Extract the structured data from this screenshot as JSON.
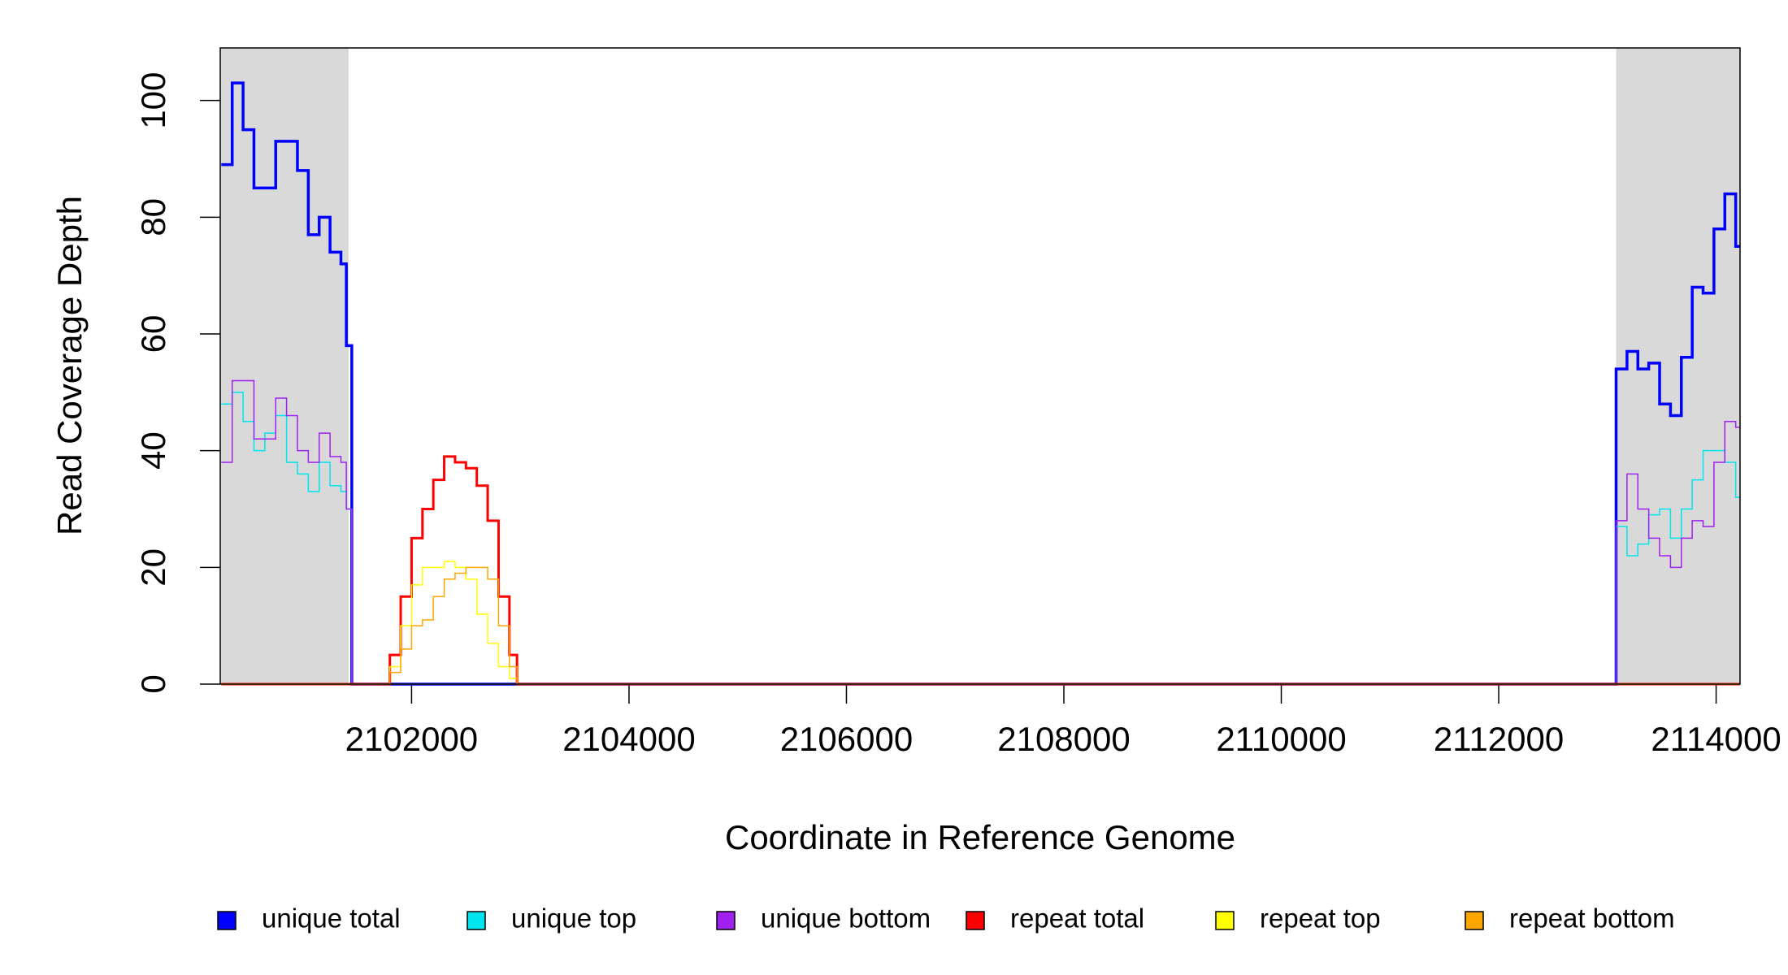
{
  "chart_data": {
    "type": "step",
    "xlabel": "Coordinate in Reference Genome",
    "ylabel": "Read Coverage Depth",
    "xlim": [
      2100240,
      2114220
    ],
    "ylim": [
      0,
      109
    ],
    "xticks": [
      2102000,
      2104000,
      2106000,
      2108000,
      2110000,
      2112000,
      2114000
    ],
    "yticks": [
      0,
      20,
      40,
      60,
      80,
      100
    ],
    "shaded_regions": [
      [
        2100240,
        2101420
      ],
      [
        2113080,
        2114220
      ]
    ],
    "shade_color": "#d9d9d9",
    "legend": "bottom",
    "x": [
      2100250,
      2100350,
      2100450,
      2100550,
      2100650,
      2100750,
      2100850,
      2100950,
      2101050,
      2101150,
      2101250,
      2101350,
      2101400,
      2101450,
      2101700,
      2101800,
      2101900,
      2102000,
      2102100,
      2102200,
      2102300,
      2102400,
      2102500,
      2102600,
      2102700,
      2102800,
      2102900,
      2102970,
      2113080,
      2113180,
      2113280,
      2113380,
      2113480,
      2113580,
      2113680,
      2113780,
      2113880,
      2113980,
      2114080,
      2114180
    ],
    "series": [
      {
        "name": "unique total",
        "color": "#0000ff",
        "width": 3.5,
        "values": [
          89,
          103,
          95,
          85,
          85,
          93,
          93,
          88,
          77,
          80,
          74,
          72,
          58,
          0,
          0,
          0,
          0,
          0,
          0,
          0,
          0,
          0,
          0,
          0,
          0,
          0,
          0,
          0,
          54,
          57,
          54,
          55,
          48,
          46,
          56,
          68,
          67,
          78,
          84,
          75
        ]
      },
      {
        "name": "unique top",
        "color": "#00e5ee",
        "width": 1.5,
        "values": [
          48,
          50,
          45,
          40,
          43,
          46,
          38,
          36,
          33,
          38,
          34,
          33,
          30,
          0,
          0,
          0,
          0,
          0,
          0,
          0,
          0,
          0,
          0,
          0,
          0,
          0,
          0,
          0,
          27,
          22,
          24,
          29,
          30,
          25,
          30,
          35,
          40,
          40,
          38,
          32
        ]
      },
      {
        "name": "unique bottom",
        "color": "#a020f0",
        "width": 1.5,
        "values": [
          38,
          52,
          52,
          42,
          42,
          49,
          46,
          40,
          38,
          43,
          39,
          38,
          30,
          0,
          0,
          0,
          0,
          0,
          0,
          0,
          0,
          0,
          0,
          0,
          0,
          0,
          0,
          0,
          28,
          36,
          30,
          25,
          22,
          20,
          25,
          28,
          27,
          38,
          45,
          44
        ]
      },
      {
        "name": "repeat total",
        "color": "#ff0000",
        "width": 3,
        "values": [
          0,
          0,
          0,
          0,
          0,
          0,
          0,
          0,
          0,
          0,
          0,
          0,
          0,
          0,
          0,
          5,
          15,
          25,
          30,
          35,
          39,
          38,
          37,
          34,
          28,
          15,
          5,
          0,
          0,
          0,
          0,
          0,
          0,
          0,
          0,
          0,
          0,
          0,
          0,
          0
        ]
      },
      {
        "name": "repeat top",
        "color": "#ffff00",
        "width": 1.5,
        "values": [
          0,
          0,
          0,
          0,
          0,
          0,
          0,
          0,
          0,
          0,
          0,
          0,
          0,
          0,
          0,
          3,
          10,
          17,
          20,
          20,
          21,
          20,
          18,
          12,
          7,
          3,
          1,
          0,
          0,
          0,
          0,
          0,
          0,
          0,
          0,
          0,
          0,
          0,
          0,
          0
        ]
      },
      {
        "name": "repeat bottom",
        "color": "#ffa500",
        "width": 1.5,
        "values": [
          0,
          0,
          0,
          0,
          0,
          0,
          0,
          0,
          0,
          0,
          0,
          0,
          0,
          0,
          0,
          2,
          6,
          10,
          11,
          15,
          18,
          19,
          20,
          20,
          18,
          10,
          3,
          0,
          0,
          0,
          0,
          0,
          0,
          0,
          0,
          0,
          0,
          0,
          0,
          0
        ]
      }
    ]
  }
}
